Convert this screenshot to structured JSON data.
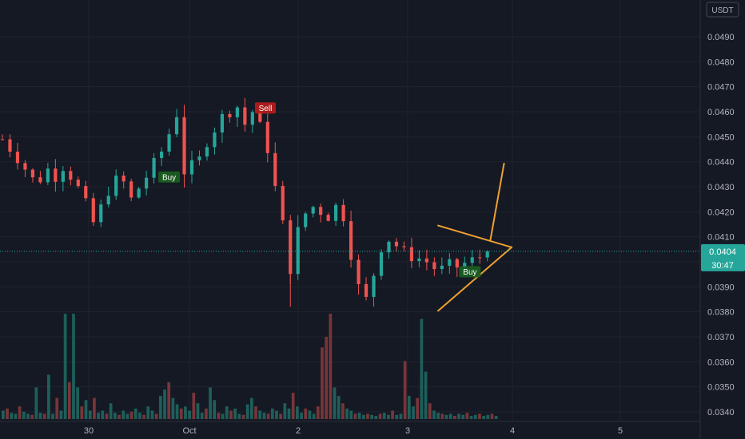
{
  "chart_data": {
    "type": "candlestick",
    "currency_label": "USDT",
    "y_ticks": [
      "0.0490",
      "0.0480",
      "0.0470",
      "0.0460",
      "0.0450",
      "0.0440",
      "0.0430",
      "0.0420",
      "0.0410",
      "0.0400",
      "0.0390",
      "0.0380",
      "0.0370",
      "0.0360",
      "0.0350",
      "0.0340"
    ],
    "x_ticks": [
      "30",
      "Oct",
      "2",
      "3",
      "4",
      "5"
    ],
    "ylim": [
      0.03375,
      0.0499
    ],
    "current_price": {
      "label": "0.0404",
      "value": 0.04042,
      "countdown": "30:47"
    },
    "candle_points": [
      [
        0.0,
        0.0449
      ],
      [
        2.1,
        0.0441
      ],
      [
        4.5,
        0.0431
      ],
      [
        6.0,
        0.0437
      ],
      [
        6.5,
        0.0432
      ],
      [
        8.0,
        0.0438
      ],
      [
        9.6,
        0.0432
      ],
      [
        11.2,
        0.0422
      ],
      [
        11.7,
        0.0414
      ],
      [
        12.8,
        0.042
      ],
      [
        13.5,
        0.0426
      ],
      [
        15.5,
        0.0435
      ],
      [
        17.0,
        0.0425
      ],
      [
        19.0,
        0.0434
      ],
      [
        20.1,
        0.044
      ],
      [
        21.2,
        0.0445
      ],
      [
        23.0,
        0.0459
      ],
      [
        24.0,
        0.0436
      ],
      [
        26.0,
        0.0441
      ],
      [
        27.0,
        0.0448
      ],
      [
        29.0,
        0.0458
      ],
      [
        31.0,
        0.0462
      ],
      [
        32.0,
        0.0455
      ],
      [
        33.0,
        0.046
      ],
      [
        34.2,
        0.0453
      ],
      [
        35.0,
        0.0445
      ],
      [
        36.3,
        0.0425
      ],
      [
        37.5,
        0.0408
      ],
      [
        38.0,
        0.0397
      ],
      [
        38.8,
        0.0411
      ],
      [
        40.1,
        0.042
      ],
      [
        41.0,
        0.0422
      ],
      [
        43.0,
        0.0418
      ],
      [
        44.2,
        0.0423
      ],
      [
        45.0,
        0.0418
      ],
      [
        46.0,
        0.0403
      ],
      [
        47.0,
        0.039
      ],
      [
        48.0,
        0.0385
      ],
      [
        49.2,
        0.0397
      ],
      [
        50.4,
        0.041
      ],
      [
        51.5,
        0.0408
      ],
      [
        52.5,
        0.0405
      ],
      [
        54.0,
        0.0402
      ],
      [
        55.5,
        0.0401
      ],
      [
        56.5,
        0.0399
      ],
      [
        57.5,
        0.0396
      ],
      [
        58.8,
        0.0399
      ],
      [
        60.0,
        0.0398
      ],
      [
        61.5,
        0.04
      ],
      [
        63.0,
        0.0402
      ],
      [
        64.2,
        0.04042
      ]
    ],
    "volume_profile": [
      0.08,
      0.1,
      0.06,
      0.05,
      0.12,
      0.07,
      0.05,
      0.04,
      0.3,
      0.06,
      0.05,
      0.42,
      0.05,
      0.2,
      0.08,
      1.0,
      0.35,
      1.0,
      0.3,
      0.12,
      0.18,
      0.08,
      0.2,
      0.06,
      0.08,
      0.05,
      0.15,
      0.06,
      0.04,
      0.08,
      0.05,
      0.07,
      0.1,
      0.06,
      0.04,
      0.12,
      0.08,
      0.05,
      0.22,
      0.28,
      0.35,
      0.2,
      0.14,
      0.1,
      0.12,
      0.08,
      0.25,
      0.15,
      0.06,
      0.1,
      0.3,
      0.18,
      0.06,
      0.05,
      0.12,
      0.08,
      0.1,
      0.05,
      0.04,
      0.14,
      0.2,
      0.12,
      0.08,
      0.06,
      0.05,
      0.1,
      0.08,
      0.05,
      0.15,
      0.1,
      0.25,
      0.12,
      0.06,
      0.1,
      0.08,
      0.05,
      0.12,
      0.68,
      0.78,
      1.0,
      0.3,
      0.22,
      0.15,
      0.1,
      0.08,
      0.05,
      0.06,
      0.04,
      0.05,
      0.04,
      0.03,
      0.05,
      0.06,
      0.04,
      0.08,
      0.04,
      0.05,
      0.55,
      0.22,
      0.12,
      0.2,
      0.95,
      0.45,
      0.15,
      0.08,
      0.06,
      0.05,
      0.04,
      0.05,
      0.03,
      0.05,
      0.04,
      0.06,
      0.03,
      0.04,
      0.05,
      0.03,
      0.04,
      0.05,
      0.03
    ],
    "signals": [
      {
        "label": "Buy",
        "type": "buy",
        "x": 22.0,
        "value": 0.04339
      },
      {
        "label": "Sell",
        "type": "sell",
        "x": 34.7,
        "value": 0.04615
      },
      {
        "label": "Buy",
        "type": "buy",
        "x": 61.7,
        "value": 0.0396
      }
    ],
    "trendlines": [
      {
        "from": [
          57.5,
          0.04145
        ],
        "to": [
          67.2,
          0.04058
        ]
      },
      {
        "from": [
          57.5,
          0.03804
        ],
        "to": [
          67.2,
          0.04058
        ]
      },
      {
        "from": [
          64.4,
          0.04088
        ],
        "to": [
          66.2,
          0.04393
        ]
      }
    ],
    "colors": {
      "up": "#26a69a",
      "down": "#ef5350",
      "trend": "#f0a030",
      "price_tag": "#26a69a"
    },
    "grid": true
  }
}
